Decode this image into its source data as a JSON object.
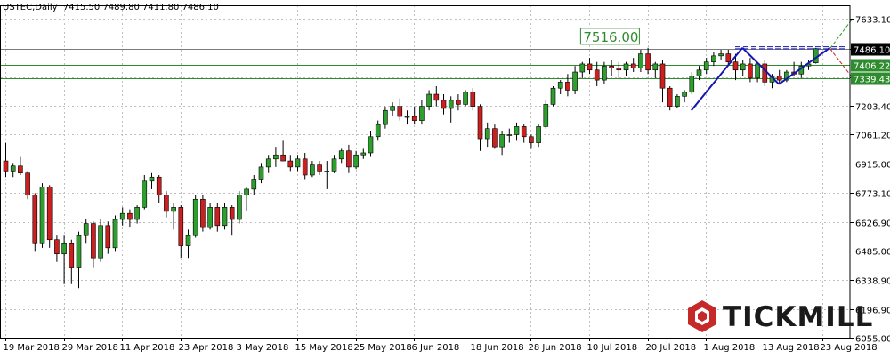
{
  "header": {
    "symbol": "USTEC,Daily",
    "ohlc": "7415.50 7489.80 7411.80 7486.10"
  },
  "watermark": {
    "text": "TICKMILL",
    "icon": "tickmill-logo-icon"
  },
  "colors": {
    "bull": "#2e9e2e",
    "bear": "#cc1f1f",
    "wick": "#000000",
    "grid": "#c0c0c0",
    "level_line": "#2e8b2e",
    "trend_line": "#1515b0",
    "current_price_bg": "#000000",
    "level_label_bg": "#2e8b2e"
  },
  "chart_data": {
    "type": "candlestick",
    "title": "USTEC,Daily",
    "ylim": [
      6055,
      7700
    ],
    "y_ticks": [
      "7633.10",
      "7486.10",
      "7344.70",
      "7203.40",
      "7061.20",
      "6915.00",
      "6773.10",
      "6626.90",
      "6485.00",
      "6338.90",
      "6196.90",
      "6055.00"
    ],
    "x_ticks": [
      {
        "label": "19 Mar 2018",
        "index": 0
      },
      {
        "label": "29 Mar 2018",
        "index": 8
      },
      {
        "label": "11 Apr 2018",
        "index": 16
      },
      {
        "label": "23 Apr 2018",
        "index": 24
      },
      {
        "label": "3 May 2018",
        "index": 32
      },
      {
        "label": "15 May 2018",
        "index": 40
      },
      {
        "label": "25 May 2018",
        "index": 48
      },
      {
        "label": "6 Jun 2018",
        "index": 56
      },
      {
        "label": "18 Jun 2018",
        "index": 64
      },
      {
        "label": "28 Jun 2018",
        "index": 72
      },
      {
        "label": "10 Jul 2018",
        "index": 80
      },
      {
        "label": "20 Jul 2018",
        "index": 88
      },
      {
        "label": "1 Aug 2018",
        "index": 96
      },
      {
        "label": "13 Aug 2018",
        "index": 104
      },
      {
        "label": "23 Aug 2018",
        "index": 112
      }
    ],
    "candles": [
      {
        "o": 6930,
        "h": 7020,
        "l": 6850,
        "c": 6880
      },
      {
        "o": 6880,
        "h": 6920,
        "l": 6850,
        "c": 6905
      },
      {
        "o": 6905,
        "h": 6950,
        "l": 6860,
        "c": 6870
      },
      {
        "o": 6870,
        "h": 6880,
        "l": 6740,
        "c": 6760
      },
      {
        "o": 6760,
        "h": 6770,
        "l": 6480,
        "c": 6520
      },
      {
        "o": 6520,
        "h": 6820,
        "l": 6500,
        "c": 6800
      },
      {
        "o": 6800,
        "h": 6810,
        "l": 6500,
        "c": 6540
      },
      {
        "o": 6540,
        "h": 6560,
        "l": 6430,
        "c": 6470
      },
      {
        "o": 6470,
        "h": 6560,
        "l": 6320,
        "c": 6520
      },
      {
        "o": 6520,
        "h": 6540,
        "l": 6320,
        "c": 6400
      },
      {
        "o": 6400,
        "h": 6580,
        "l": 6300,
        "c": 6560
      },
      {
        "o": 6560,
        "h": 6640,
        "l": 6520,
        "c": 6620
      },
      {
        "o": 6620,
        "h": 6630,
        "l": 6400,
        "c": 6450
      },
      {
        "o": 6450,
        "h": 6640,
        "l": 6430,
        "c": 6610
      },
      {
        "o": 6610,
        "h": 6630,
        "l": 6470,
        "c": 6500
      },
      {
        "o": 6500,
        "h": 6660,
        "l": 6480,
        "c": 6640
      },
      {
        "o": 6640,
        "h": 6700,
        "l": 6610,
        "c": 6670
      },
      {
        "o": 6670,
        "h": 6690,
        "l": 6600,
        "c": 6640
      },
      {
        "o": 6640,
        "h": 6710,
        "l": 6620,
        "c": 6700
      },
      {
        "o": 6700,
        "h": 6860,
        "l": 6690,
        "c": 6830
      },
      {
        "o": 6830,
        "h": 6870,
        "l": 6790,
        "c": 6850
      },
      {
        "o": 6850,
        "h": 6860,
        "l": 6720,
        "c": 6760
      },
      {
        "o": 6760,
        "h": 6780,
        "l": 6650,
        "c": 6680
      },
      {
        "o": 6680,
        "h": 6720,
        "l": 6590,
        "c": 6700
      },
      {
        "o": 6700,
        "h": 6710,
        "l": 6450,
        "c": 6510
      },
      {
        "o": 6510,
        "h": 6590,
        "l": 6450,
        "c": 6560
      },
      {
        "o": 6560,
        "h": 6760,
        "l": 6550,
        "c": 6740
      },
      {
        "o": 6740,
        "h": 6760,
        "l": 6580,
        "c": 6600
      },
      {
        "o": 6600,
        "h": 6720,
        "l": 6590,
        "c": 6700
      },
      {
        "o": 6700,
        "h": 6720,
        "l": 6580,
        "c": 6610
      },
      {
        "o": 6610,
        "h": 6720,
        "l": 6590,
        "c": 6700
      },
      {
        "o": 6700,
        "h": 6710,
        "l": 6560,
        "c": 6640
      },
      {
        "o": 6640,
        "h": 6780,
        "l": 6620,
        "c": 6760
      },
      {
        "o": 6760,
        "h": 6800,
        "l": 6680,
        "c": 6790
      },
      {
        "o": 6790,
        "h": 6860,
        "l": 6760,
        "c": 6840
      },
      {
        "o": 6840,
        "h": 6920,
        "l": 6820,
        "c": 6900
      },
      {
        "o": 6900,
        "h": 6960,
        "l": 6870,
        "c": 6940
      },
      {
        "o": 6940,
        "h": 7000,
        "l": 6900,
        "c": 6960
      },
      {
        "o": 6960,
        "h": 7030,
        "l": 6930,
        "c": 6930
      },
      {
        "o": 6930,
        "h": 6960,
        "l": 6880,
        "c": 6900
      },
      {
        "o": 6900,
        "h": 6960,
        "l": 6880,
        "c": 6940
      },
      {
        "o": 6940,
        "h": 6970,
        "l": 6840,
        "c": 6860
      },
      {
        "o": 6860,
        "h": 6930,
        "l": 6850,
        "c": 6910
      },
      {
        "o": 6910,
        "h": 6930,
        "l": 6860,
        "c": 6880
      },
      {
        "o": 6880,
        "h": 6930,
        "l": 6790,
        "c": 6880
      },
      {
        "o": 6880,
        "h": 6960,
        "l": 6870,
        "c": 6940
      },
      {
        "o": 6940,
        "h": 6990,
        "l": 6920,
        "c": 6980
      },
      {
        "o": 6980,
        "h": 7010,
        "l": 6870,
        "c": 6900
      },
      {
        "o": 6900,
        "h": 6980,
        "l": 6890,
        "c": 6960
      },
      {
        "o": 6960,
        "h": 6990,
        "l": 6940,
        "c": 6970
      },
      {
        "o": 6970,
        "h": 7080,
        "l": 6950,
        "c": 7050
      },
      {
        "o": 7050,
        "h": 7130,
        "l": 7030,
        "c": 7110
      },
      {
        "o": 7110,
        "h": 7200,
        "l": 7090,
        "c": 7180
      },
      {
        "o": 7180,
        "h": 7220,
        "l": 7150,
        "c": 7200
      },
      {
        "o": 7200,
        "h": 7240,
        "l": 7130,
        "c": 7150
      },
      {
        "o": 7150,
        "h": 7180,
        "l": 7110,
        "c": 7150
      },
      {
        "o": 7150,
        "h": 7200,
        "l": 7110,
        "c": 7130
      },
      {
        "o": 7130,
        "h": 7230,
        "l": 7110,
        "c": 7200
      },
      {
        "o": 7200,
        "h": 7280,
        "l": 7180,
        "c": 7260
      },
      {
        "o": 7260,
        "h": 7300,
        "l": 7200,
        "c": 7230
      },
      {
        "o": 7230,
        "h": 7260,
        "l": 7160,
        "c": 7190
      },
      {
        "o": 7190,
        "h": 7250,
        "l": 7120,
        "c": 7230
      },
      {
        "o": 7230,
        "h": 7260,
        "l": 7180,
        "c": 7210
      },
      {
        "o": 7210,
        "h": 7280,
        "l": 7200,
        "c": 7270
      },
      {
        "o": 7270,
        "h": 7290,
        "l": 7180,
        "c": 7200
      },
      {
        "o": 7200,
        "h": 7210,
        "l": 6980,
        "c": 7040
      },
      {
        "o": 7040,
        "h": 7120,
        "l": 7000,
        "c": 7090
      },
      {
        "o": 7090,
        "h": 7110,
        "l": 6990,
        "c": 7000
      },
      {
        "o": 7000,
        "h": 7080,
        "l": 6960,
        "c": 7060
      },
      {
        "o": 7060,
        "h": 7090,
        "l": 7020,
        "c": 7060
      },
      {
        "o": 7060,
        "h": 7120,
        "l": 7030,
        "c": 7100
      },
      {
        "o": 7100,
        "h": 7110,
        "l": 7020,
        "c": 7050
      },
      {
        "o": 7050,
        "h": 7060,
        "l": 6990,
        "c": 7020
      },
      {
        "o": 7020,
        "h": 7110,
        "l": 7000,
        "c": 7100
      },
      {
        "o": 7100,
        "h": 7230,
        "l": 7090,
        "c": 7210
      },
      {
        "o": 7210,
        "h": 7300,
        "l": 7200,
        "c": 7290
      },
      {
        "o": 7290,
        "h": 7330,
        "l": 7260,
        "c": 7320
      },
      {
        "o": 7320,
        "h": 7360,
        "l": 7250,
        "c": 7280
      },
      {
        "o": 7280,
        "h": 7400,
        "l": 7260,
        "c": 7370
      },
      {
        "o": 7370,
        "h": 7420,
        "l": 7340,
        "c": 7410
      },
      {
        "o": 7410,
        "h": 7440,
        "l": 7360,
        "c": 7380
      },
      {
        "o": 7380,
        "h": 7420,
        "l": 7300,
        "c": 7330
      },
      {
        "o": 7330,
        "h": 7420,
        "l": 7310,
        "c": 7400
      },
      {
        "o": 7400,
        "h": 7430,
        "l": 7350,
        "c": 7390
      },
      {
        "o": 7390,
        "h": 7420,
        "l": 7340,
        "c": 7380
      },
      {
        "o": 7380,
        "h": 7420,
        "l": 7350,
        "c": 7410
      },
      {
        "o": 7410,
        "h": 7440,
        "l": 7370,
        "c": 7390
      },
      {
        "o": 7390,
        "h": 7480,
        "l": 7370,
        "c": 7460
      },
      {
        "o": 7460,
        "h": 7490,
        "l": 7360,
        "c": 7380
      },
      {
        "o": 7380,
        "h": 7420,
        "l": 7340,
        "c": 7410
      },
      {
        "o": 7410,
        "h": 7430,
        "l": 7220,
        "c": 7290
      },
      {
        "o": 7290,
        "h": 7300,
        "l": 7180,
        "c": 7200
      },
      {
        "o": 7200,
        "h": 7260,
        "l": 7190,
        "c": 7250
      },
      {
        "o": 7250,
        "h": 7280,
        "l": 7220,
        "c": 7270
      },
      {
        "o": 7270,
        "h": 7370,
        "l": 7260,
        "c": 7350
      },
      {
        "o": 7350,
        "h": 7400,
        "l": 7330,
        "c": 7380
      },
      {
        "o": 7380,
        "h": 7440,
        "l": 7360,
        "c": 7420
      },
      {
        "o": 7420,
        "h": 7470,
        "l": 7400,
        "c": 7450
      },
      {
        "o": 7450,
        "h": 7480,
        "l": 7430,
        "c": 7460
      },
      {
        "o": 7460,
        "h": 7480,
        "l": 7400,
        "c": 7420
      },
      {
        "o": 7420,
        "h": 7460,
        "l": 7330,
        "c": 7380
      },
      {
        "o": 7380,
        "h": 7430,
        "l": 7350,
        "c": 7410
      },
      {
        "o": 7410,
        "h": 7440,
        "l": 7320,
        "c": 7340
      },
      {
        "o": 7340,
        "h": 7420,
        "l": 7320,
        "c": 7410
      },
      {
        "o": 7410,
        "h": 7430,
        "l": 7300,
        "c": 7320
      },
      {
        "o": 7320,
        "h": 7360,
        "l": 7290,
        "c": 7350
      },
      {
        "o": 7350,
        "h": 7380,
        "l": 7310,
        "c": 7330
      },
      {
        "o": 7330,
        "h": 7380,
        "l": 7320,
        "c": 7370
      },
      {
        "o": 7370,
        "h": 7420,
        "l": 7350,
        "c": 7360
      },
      {
        "o": 7360,
        "h": 7420,
        "l": 7340,
        "c": 7400
      },
      {
        "o": 7400,
        "h": 7430,
        "l": 7380,
        "c": 7410
      },
      {
        "o": 7415.5,
        "h": 7489.8,
        "l": 7411.8,
        "c": 7486.1
      }
    ],
    "horizontal_levels": [
      {
        "price": 7486.1,
        "label": "7486.10",
        "kind": "current"
      },
      {
        "price": 7406.22,
        "label": "7406.22",
        "kind": "level"
      },
      {
        "price": 7339.43,
        "label": "7339.43",
        "kind": "level"
      }
    ],
    "annotations": [
      {
        "text": "7516.00",
        "price": 7516.0,
        "index": 82
      }
    ],
    "trend_lines": [
      {
        "from": {
          "index": 94,
          "price": 7180
        },
        "to": {
          "index": 101,
          "price": 7490
        },
        "style": "solid"
      },
      {
        "from": {
          "index": 101,
          "price": 7490
        },
        "to": {
          "index": 106,
          "price": 7310
        },
        "style": "solid"
      },
      {
        "from": {
          "index": 106,
          "price": 7310
        },
        "to": {
          "index": 113,
          "price": 7490
        },
        "style": "solid"
      },
      {
        "from": {
          "index": 100,
          "price": 7495
        },
        "to": {
          "index": 115,
          "price": 7495
        },
        "style": "dashed"
      },
      {
        "from": {
          "index": 100,
          "price": 7485
        },
        "to": {
          "index": 115,
          "price": 7485
        },
        "style": "dashed"
      }
    ],
    "projection_lines": [
      {
        "from": {
          "index": 113,
          "price": 7486
        },
        "to": {
          "index": 116,
          "price": 7630
        },
        "color": "#2e9e2e"
      },
      {
        "from": {
          "index": 113,
          "price": 7486
        },
        "to": {
          "index": 116,
          "price": 7345
        },
        "color": "#cc1f1f"
      }
    ]
  }
}
